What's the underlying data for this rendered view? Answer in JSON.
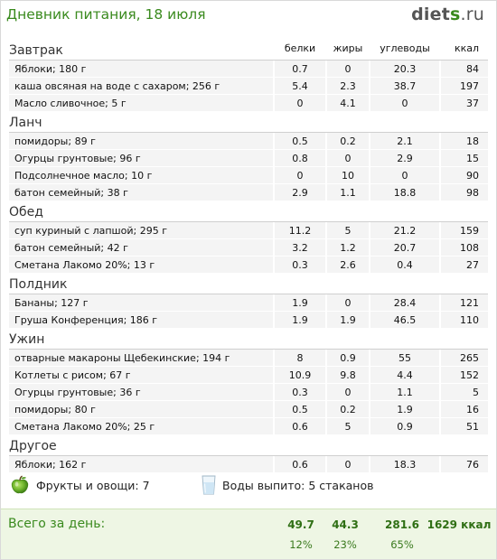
{
  "header": {
    "title": "Дневник питания, 18 июля",
    "logo_part1": "diet",
    "logo_part2": "s",
    "logo_part3": ".ru"
  },
  "columns": {
    "protein": "белки",
    "fat": "жиры",
    "carbs": "углеводы",
    "kcal": "ккал"
  },
  "meals": [
    {
      "title": "Завтрак",
      "items": [
        {
          "name": "Яблоки; 180 г",
          "p": "0.7",
          "f": "0",
          "c": "20.3",
          "k": "84"
        },
        {
          "name": "каша овсяная на воде с сахаром; 256 г",
          "p": "5.4",
          "f": "2.3",
          "c": "38.7",
          "k": "197"
        },
        {
          "name": "Масло сливочное; 5 г",
          "p": "0",
          "f": "4.1",
          "c": "0",
          "k": "37"
        }
      ]
    },
    {
      "title": "Ланч",
      "items": [
        {
          "name": "помидоры; 89 г",
          "p": "0.5",
          "f": "0.2",
          "c": "2.1",
          "k": "18"
        },
        {
          "name": "Огурцы грунтовые; 96 г",
          "p": "0.8",
          "f": "0",
          "c": "2.9",
          "k": "15"
        },
        {
          "name": "Подсолнечное масло; 10 г",
          "p": "0",
          "f": "10",
          "c": "0",
          "k": "90"
        },
        {
          "name": "батон семейный; 38 г",
          "p": "2.9",
          "f": "1.1",
          "c": "18.8",
          "k": "98"
        }
      ]
    },
    {
      "title": "Обед",
      "items": [
        {
          "name": "суп куриный с лапшой; 295 г",
          "p": "11.2",
          "f": "5",
          "c": "21.2",
          "k": "159"
        },
        {
          "name": "батон семейный; 42 г",
          "p": "3.2",
          "f": "1.2",
          "c": "20.7",
          "k": "108"
        },
        {
          "name": "Сметана Лакомо 20%; 13 г",
          "p": "0.3",
          "f": "2.6",
          "c": "0.4",
          "k": "27"
        }
      ]
    },
    {
      "title": "Полдник",
      "items": [
        {
          "name": "Бананы; 127 г",
          "p": "1.9",
          "f": "0",
          "c": "28.4",
          "k": "121"
        },
        {
          "name": "Груша Конференция; 186 г",
          "p": "1.9",
          "f": "1.9",
          "c": "46.5",
          "k": "110"
        }
      ]
    },
    {
      "title": "Ужин",
      "items": [
        {
          "name": "отварные макароны Щебекинские; 194 г",
          "p": "8",
          "f": "0.9",
          "c": "55",
          "k": "265"
        },
        {
          "name": "Котлеты с рисом; 67 г",
          "p": "10.9",
          "f": "9.8",
          "c": "4.4",
          "k": "152"
        },
        {
          "name": "Огурцы грунтовые; 36 г",
          "p": "0.3",
          "f": "0",
          "c": "1.1",
          "k": "5"
        },
        {
          "name": "помидоры; 80 г",
          "p": "0.5",
          "f": "0.2",
          "c": "1.9",
          "k": "16"
        },
        {
          "name": "Сметана Лакомо 20%; 25 г",
          "p": "0.6",
          "f": "5",
          "c": "0.9",
          "k": "51"
        }
      ]
    },
    {
      "title": "Другое",
      "items": [
        {
          "name": "Яблоки; 162 г",
          "p": "0.6",
          "f": "0",
          "c": "18.3",
          "k": "76"
        }
      ]
    }
  ],
  "summary": {
    "fruits_label": "Фрукты и овощи: 7",
    "water_label": "Воды выпито: 5 стаканов",
    "fruit_icon": "green-apple-icon",
    "water_icon": "water-glass-icon"
  },
  "totals": {
    "label": "Всего за день:",
    "protein": "49.7",
    "fat": "44.3",
    "carbs": "281.6",
    "kcal": "1629 ккал",
    "protein_pct": "12%",
    "fat_pct": "23%",
    "carbs_pct": "65%"
  },
  "colors": {
    "accent_green": "#3a8a1e",
    "totals_bg": "#eef6e4",
    "row_bg": "#f4f4f4"
  }
}
